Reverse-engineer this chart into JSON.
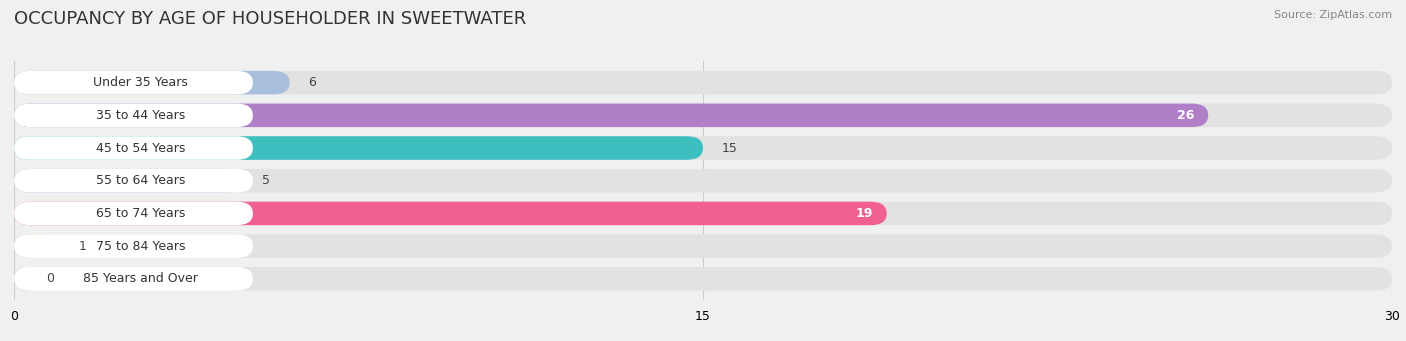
{
  "title": "OCCUPANCY BY AGE OF HOUSEHOLDER IN SWEETWATER",
  "source": "Source: ZipAtlas.com",
  "categories": [
    "Under 35 Years",
    "35 to 44 Years",
    "45 to 54 Years",
    "55 to 64 Years",
    "65 to 74 Years",
    "75 to 84 Years",
    "85 Years and Over"
  ],
  "values": [
    6,
    26,
    15,
    5,
    19,
    1,
    0
  ],
  "bar_colors": [
    "#a8bedd",
    "#b07fc7",
    "#3dbfbf",
    "#a8a8e0",
    "#f06090",
    "#f5c98a",
    "#f5a8a8"
  ],
  "label_bg_color": "#ffffff",
  "xlim": [
    0,
    30
  ],
  "xticks": [
    0,
    15,
    30
  ],
  "background_color": "#f0f0f0",
  "bar_bg_color": "#e2e2e2",
  "title_fontsize": 13,
  "label_fontsize": 9,
  "value_fontsize": 9,
  "source_fontsize": 8
}
